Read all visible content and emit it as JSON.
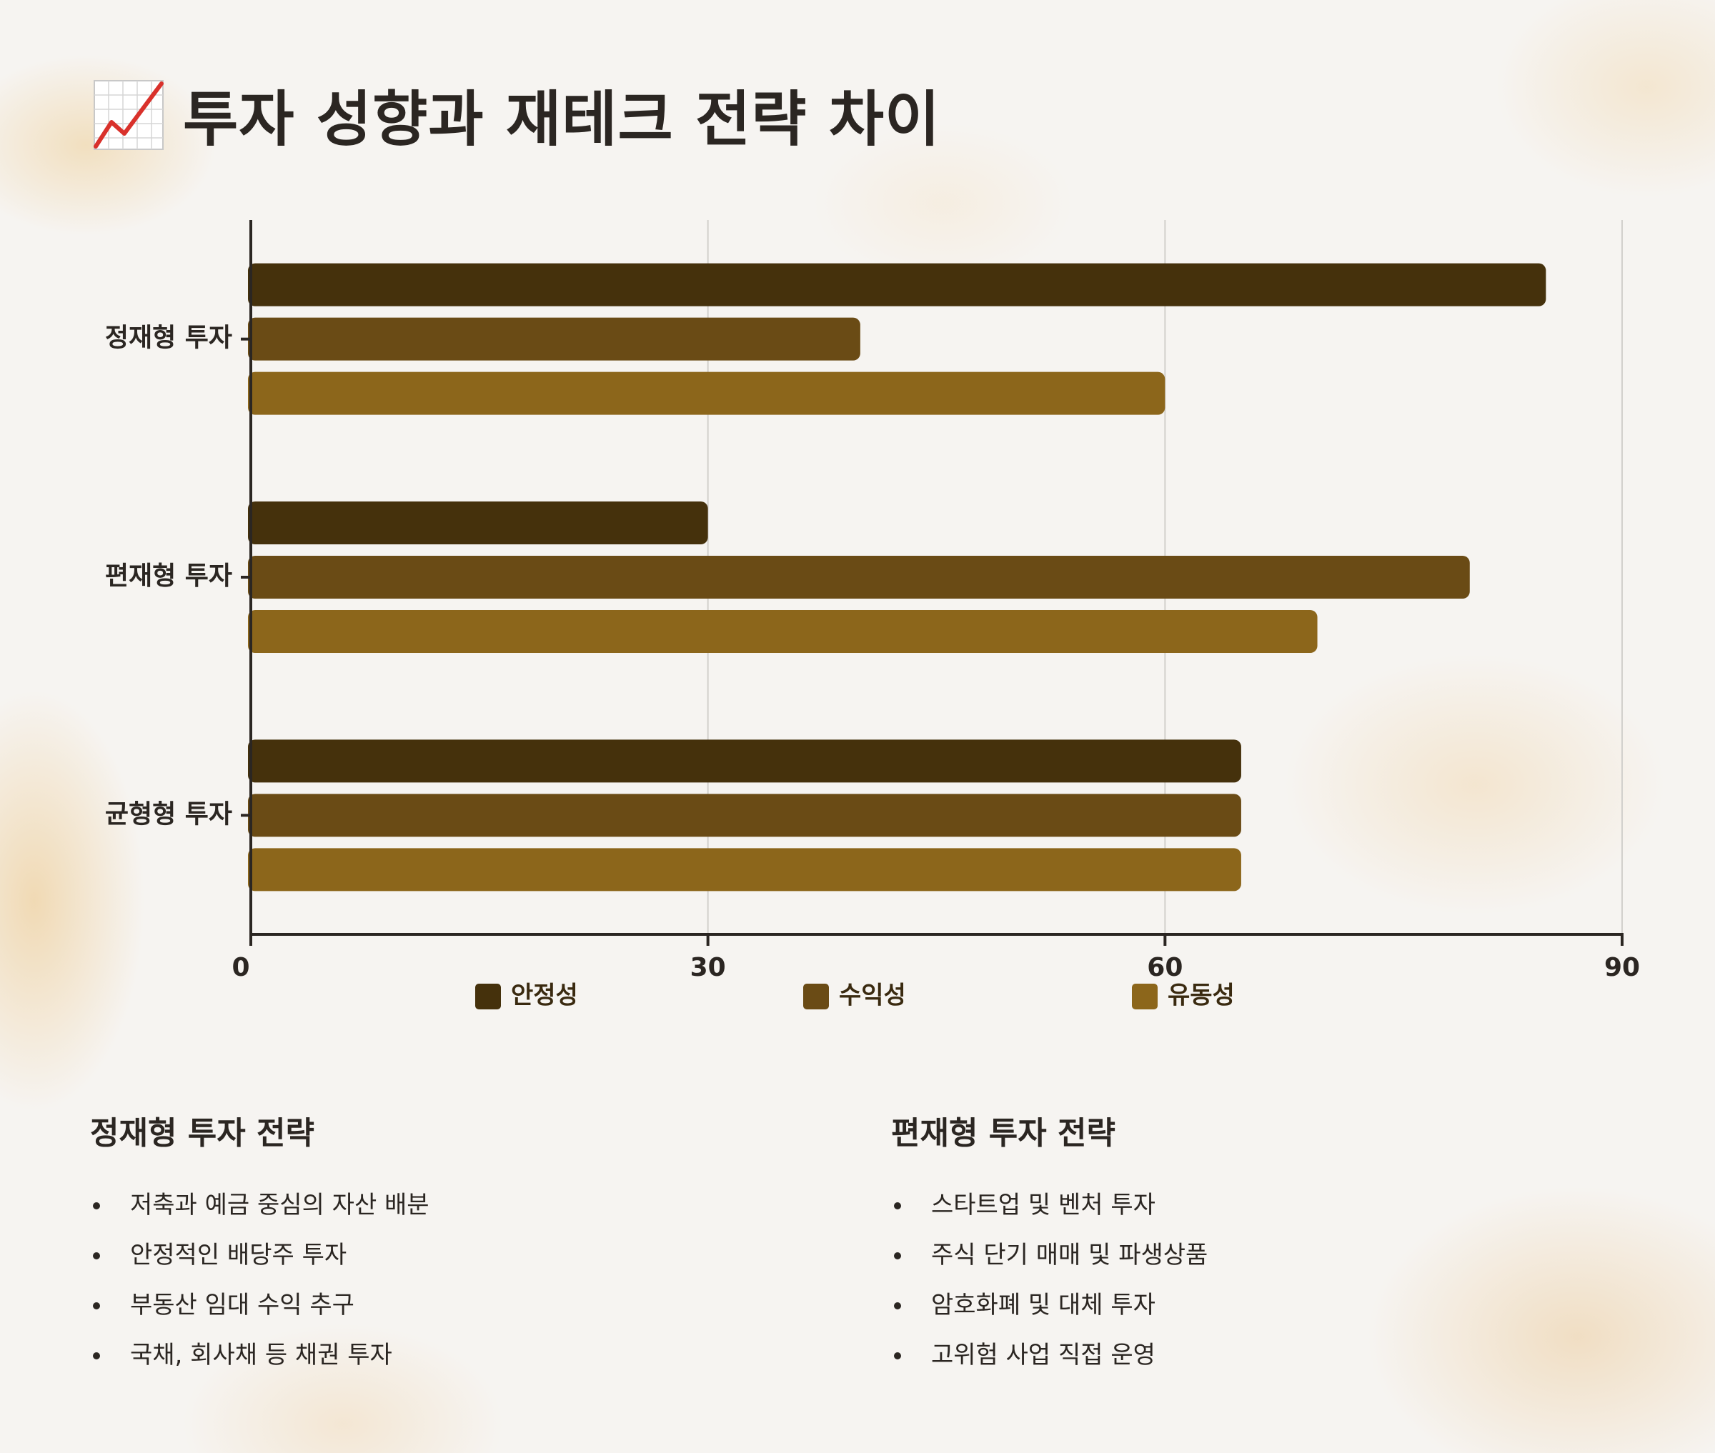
{
  "title": "투자 성향과 재테크 전략 차이",
  "title_icon": "chart-increasing-icon",
  "chart_data": {
    "type": "bar",
    "orientation": "horizontal",
    "categories": [
      "정재형 투자",
      "편재형 투자",
      "균형형 투자"
    ],
    "series": [
      {
        "name": "안정성",
        "color": "#45310c",
        "values": [
          85,
          30,
          65
        ]
      },
      {
        "name": "수익성",
        "color": "#6a4b15",
        "values": [
          40,
          80,
          65
        ]
      },
      {
        "name": "유동성",
        "color": "#8c661b",
        "values": [
          60,
          70,
          65
        ]
      }
    ],
    "xlim": [
      0,
      90
    ],
    "xticks": [
      "0",
      "30",
      "60",
      "90"
    ],
    "grid": true,
    "legend": "bottom"
  },
  "strategies": [
    {
      "heading": "정재형 투자 전략",
      "items": [
        "저축과 예금 중심의 자산 배분",
        "안정적인 배당주 투자",
        "부동산 임대 수익 추구",
        "국채, 회사채 등 채권 투자"
      ]
    },
    {
      "heading": "편재형 투자 전략",
      "items": [
        "스타트업 및 벤처 투자",
        "주식 단기 매매 및 파생상품",
        "암호화폐 및 대체 투자",
        "고위험 사업 직접 운영"
      ]
    }
  ]
}
